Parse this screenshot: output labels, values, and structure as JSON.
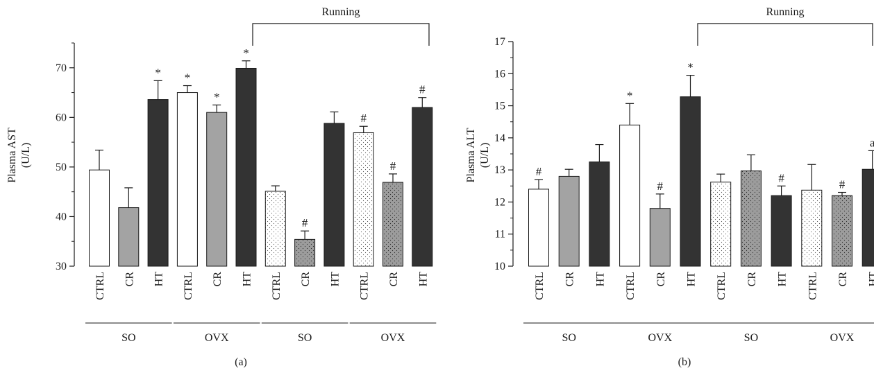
{
  "chart_data": [
    {
      "panel_label": "(a)",
      "type": "bar",
      "ylabel_line1": "Plasma AST",
      "ylabel_line2": "(U/L)",
      "ylim": [
        30,
        75
      ],
      "yticks": [
        30,
        40,
        50,
        60,
        70
      ],
      "bracket_label": "Running",
      "categories": [
        "CTRL",
        "CR",
        "HT",
        "CTRL",
        "CR",
        "HT",
        "CTRL",
        "CR",
        "HT",
        "CTRL",
        "CR",
        "HT"
      ],
      "values": [
        49.4,
        41.8,
        63.6,
        65.0,
        61.0,
        69.9,
        45.1,
        35.4,
        58.8,
        56.9,
        46.9,
        62.0
      ],
      "errors": [
        4.0,
        4.0,
        3.8,
        1.4,
        1.5,
        1.5,
        1.1,
        1.7,
        2.3,
        1.3,
        1.7,
        2.0
      ],
      "annotations": [
        "",
        "",
        "*",
        "*",
        "*",
        "*",
        "",
        "#",
        "",
        "#",
        "#",
        "#"
      ],
      "fill": [
        "white",
        "gray",
        "dark",
        "white",
        "gray",
        "dark",
        "dots-white",
        "dots-gray",
        "dark",
        "dots-white",
        "dots-gray",
        "dark"
      ],
      "groups": [
        "SO",
        "OVX",
        "SO",
        "OVX"
      ]
    },
    {
      "panel_label": "(b)",
      "type": "bar",
      "ylabel_line1": "Plasma ALT",
      "ylabel_line2": "(U/L)",
      "ylim": [
        10,
        17
      ],
      "yticks": [
        10,
        11,
        12,
        13,
        14,
        15,
        16,
        17
      ],
      "bracket_label": "Running",
      "categories": [
        "CTRL",
        "CR",
        "HT",
        "CTRL",
        "CR",
        "HT",
        "CTRL",
        "CR",
        "HT",
        "CTRL",
        "CR",
        "HT"
      ],
      "values": [
        12.4,
        12.8,
        13.25,
        14.4,
        11.8,
        15.28,
        12.62,
        12.97,
        12.2,
        12.37,
        12.2,
        13.02
      ],
      "errors": [
        0.3,
        0.22,
        0.54,
        0.67,
        0.45,
        0.67,
        0.25,
        0.5,
        0.3,
        0.8,
        0.1,
        0.58
      ],
      "annotations": [
        "#",
        "",
        "",
        "*",
        "#",
        "*",
        "",
        "",
        "#",
        "",
        "#",
        "a"
      ],
      "fill": [
        "white",
        "gray",
        "dark",
        "white",
        "gray",
        "dark",
        "dots-white",
        "dots-gray",
        "dark",
        "dots-white",
        "dots-gray",
        "dark"
      ],
      "groups": [
        "SO",
        "OVX",
        "SO",
        "OVX"
      ]
    }
  ],
  "colors": {
    "white": "#ffffff",
    "gray": "#a3a3a3",
    "dark": "#333333",
    "dots_white_bg": "#ffffff",
    "dots_gray_bg": "#9c9c9c",
    "outline": "#1a1a1a"
  }
}
